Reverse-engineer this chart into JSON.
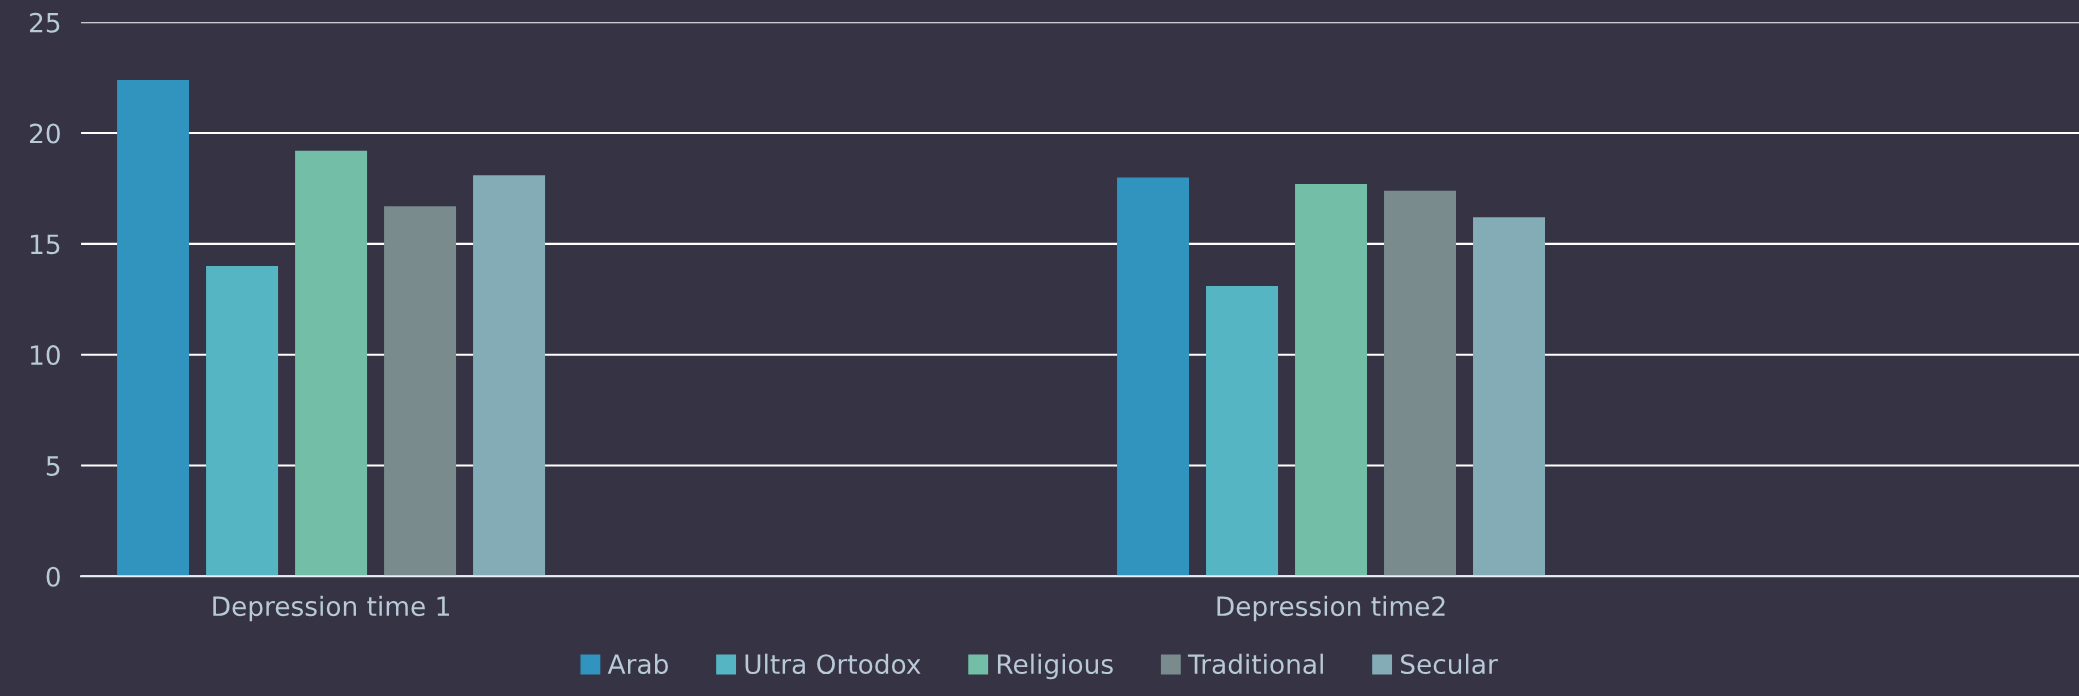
{
  "chart_data": {
    "type": "bar",
    "categories": [
      "Depression time 1",
      "Depression time2"
    ],
    "series": [
      {
        "name": "Arab",
        "color": "#3094bf",
        "values": [
          22.4,
          18.0
        ]
      },
      {
        "name": "Ultra Ortodox",
        "color": "#56b5c3",
        "values": [
          14.0,
          13.1
        ]
      },
      {
        "name": "Religious",
        "color": "#73bea6",
        "values": [
          19.2,
          17.7
        ]
      },
      {
        "name": "Traditional",
        "color": "#798b8d",
        "values": [
          16.7,
          17.4
        ]
      },
      {
        "name": "Secular",
        "color": "#83acb6",
        "values": [
          18.1,
          16.2
        ]
      }
    ],
    "ylim": [
      0,
      25
    ],
    "yticks": [
      0,
      5,
      10,
      15,
      20,
      25
    ],
    "grid": "y",
    "legend": "bottom"
  }
}
